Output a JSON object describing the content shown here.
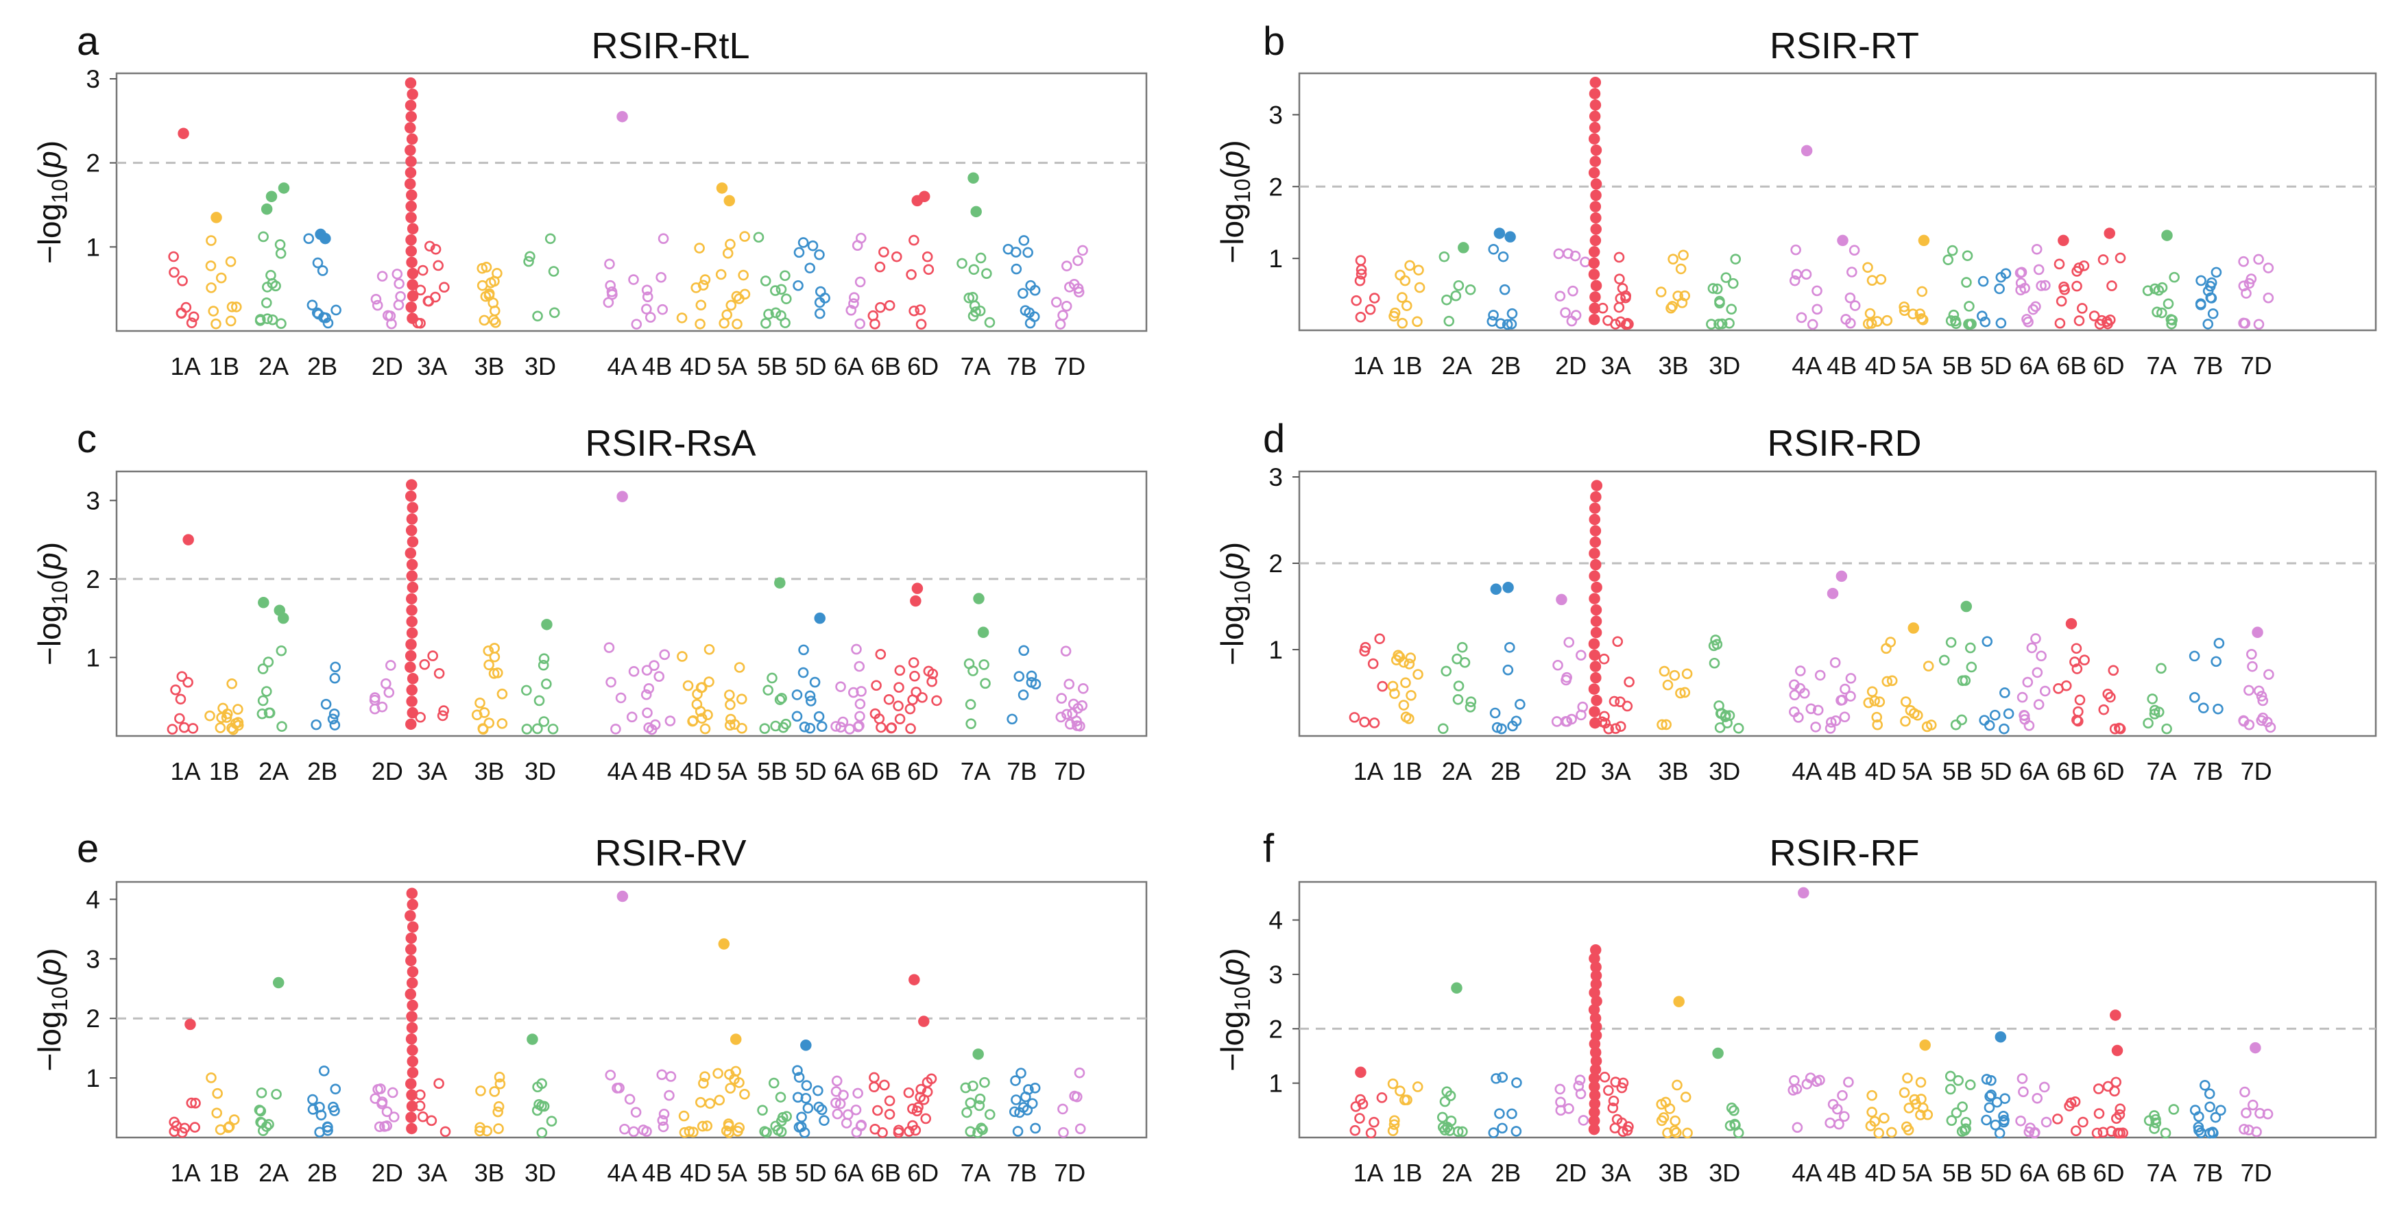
{
  "chromosomes": [
    "1A",
    "1B",
    "2A",
    "2B",
    "2D",
    "3A",
    "3B",
    "3D",
    "4A",
    "4B",
    "4D",
    "5A",
    "5B",
    "5D",
    "6A",
    "6B",
    "6D",
    "7A",
    "7B",
    "7D"
  ],
  "ylabel": "−log10(p)",
  "ylabel_parts": {
    "main": "−log",
    "sub": "10",
    "open": "(",
    "italic": "p",
    "close": ")"
  },
  "colors": {
    "A": "#f04e5e",
    "B": "#f7be3e",
    "C": "#6cc07a",
    "D": "#3a8fcc",
    "E": "#d78ad8"
  },
  "threshold": 2,
  "chart_data": [
    {
      "type": "scatter",
      "letter": "a",
      "title": "RSIR-RtL",
      "ylim": [
        0,
        3.0
      ],
      "yticks": [
        "1",
        "2",
        "3"
      ],
      "peak": 2.95,
      "seed": 11,
      "highlights": [
        {
          "chrom": "1A",
          "y": 2.35
        },
        {
          "chrom": "2A",
          "y": 1.7
        },
        {
          "chrom": "2A",
          "y": 1.6
        },
        {
          "chrom": "2A",
          "y": 1.45
        },
        {
          "chrom": "2B",
          "y": 1.15
        },
        {
          "chrom": "2B",
          "y": 1.1
        },
        {
          "chrom": "4A",
          "y": 2.55
        },
        {
          "chrom": "5A",
          "y": 1.55
        },
        {
          "chrom": "5A",
          "y": 1.7
        },
        {
          "chrom": "6D",
          "y": 1.55
        },
        {
          "chrom": "6D",
          "y": 1.6
        },
        {
          "chrom": "7A",
          "y": 1.82
        },
        {
          "chrom": "7A",
          "y": 1.42
        },
        {
          "chrom": "1B",
          "y": 1.35
        }
      ]
    },
    {
      "type": "scatter",
      "letter": "b",
      "title": "RSIR-RT",
      "ylim": [
        0,
        3.5
      ],
      "yticks": [
        "1",
        "2",
        "3"
      ],
      "peak": 3.45,
      "seed": 23,
      "highlights": [
        {
          "chrom": "4A",
          "y": 2.5
        },
        {
          "chrom": "2B",
          "y": 1.35
        },
        {
          "chrom": "2B",
          "y": 1.3
        },
        {
          "chrom": "2A",
          "y": 1.15
        },
        {
          "chrom": "5A",
          "y": 1.25
        },
        {
          "chrom": "6B",
          "y": 1.25
        },
        {
          "chrom": "6D",
          "y": 1.35
        },
        {
          "chrom": "7A",
          "y": 1.32
        },
        {
          "chrom": "4B",
          "y": 1.25
        }
      ]
    },
    {
      "type": "scatter",
      "letter": "c",
      "title": "RSIR-RsA",
      "ylim": [
        0,
        3.3
      ],
      "yticks": [
        "1",
        "2",
        "3"
      ],
      "peak": 3.2,
      "seed": 37,
      "highlights": [
        {
          "chrom": "1A",
          "y": 2.5
        },
        {
          "chrom": "2A",
          "y": 1.7
        },
        {
          "chrom": "2A",
          "y": 1.6
        },
        {
          "chrom": "2A",
          "y": 1.5
        },
        {
          "chrom": "4A",
          "y": 3.05
        },
        {
          "chrom": "5B",
          "y": 1.95
        },
        {
          "chrom": "6D",
          "y": 1.88
        },
        {
          "chrom": "6D",
          "y": 1.72
        },
        {
          "chrom": "7A",
          "y": 1.75
        },
        {
          "chrom": "7A",
          "y": 1.32
        },
        {
          "chrom": "3D",
          "y": 1.42
        },
        {
          "chrom": "5D",
          "y": 1.5
        }
      ]
    },
    {
      "type": "scatter",
      "letter": "d",
      "title": "RSIR-RD",
      "ylim": [
        0,
        3.0
      ],
      "yticks": [
        "1",
        "2",
        "3"
      ],
      "peak": 2.9,
      "seed": 41,
      "highlights": [
        {
          "chrom": "2B",
          "y": 1.72
        },
        {
          "chrom": "2B",
          "y": 1.7
        },
        {
          "chrom": "2D",
          "y": 1.58
        },
        {
          "chrom": "4B",
          "y": 1.85
        },
        {
          "chrom": "4B",
          "y": 1.65
        },
        {
          "chrom": "5B",
          "y": 1.5
        },
        {
          "chrom": "6B",
          "y": 1.3
        },
        {
          "chrom": "5A",
          "y": 1.25
        },
        {
          "chrom": "7D",
          "y": 1.2
        }
      ]
    },
    {
      "type": "scatter",
      "letter": "e",
      "title": "RSIR-RV",
      "ylim": [
        0,
        4.2
      ],
      "yticks": [
        "1",
        "2",
        "3",
        "4"
      ],
      "peak": 4.1,
      "seed": 53,
      "highlights": [
        {
          "chrom": "1A",
          "y": 1.9
        },
        {
          "chrom": "2A",
          "y": 2.6
        },
        {
          "chrom": "4A",
          "y": 4.05
        },
        {
          "chrom": "5A",
          "y": 3.25
        },
        {
          "chrom": "6D",
          "y": 2.65
        },
        {
          "chrom": "6D",
          "y": 1.95
        },
        {
          "chrom": "3D",
          "y": 1.65
        },
        {
          "chrom": "5A",
          "y": 1.65
        },
        {
          "chrom": "7A",
          "y": 1.4
        },
        {
          "chrom": "5D",
          "y": 1.55
        }
      ]
    },
    {
      "type": "scatter",
      "letter": "f",
      "title": "RSIR-RF",
      "ylim": [
        0,
        4.6
      ],
      "yticks": [
        "1",
        "2",
        "3",
        "4"
      ],
      "peak": 3.45,
      "seed": 67,
      "highlights": [
        {
          "chrom": "4A",
          "y": 4.5
        },
        {
          "chrom": "2A",
          "y": 2.75
        },
        {
          "chrom": "3B",
          "y": 2.5
        },
        {
          "chrom": "6D",
          "y": 2.25
        },
        {
          "chrom": "6D",
          "y": 1.6
        },
        {
          "chrom": "5D",
          "y": 1.85
        },
        {
          "chrom": "7D",
          "y": 1.65
        },
        {
          "chrom": "5A",
          "y": 1.7
        },
        {
          "chrom": "3D",
          "y": 1.55
        },
        {
          "chrom": "1A",
          "y": 1.2
        }
      ]
    }
  ]
}
